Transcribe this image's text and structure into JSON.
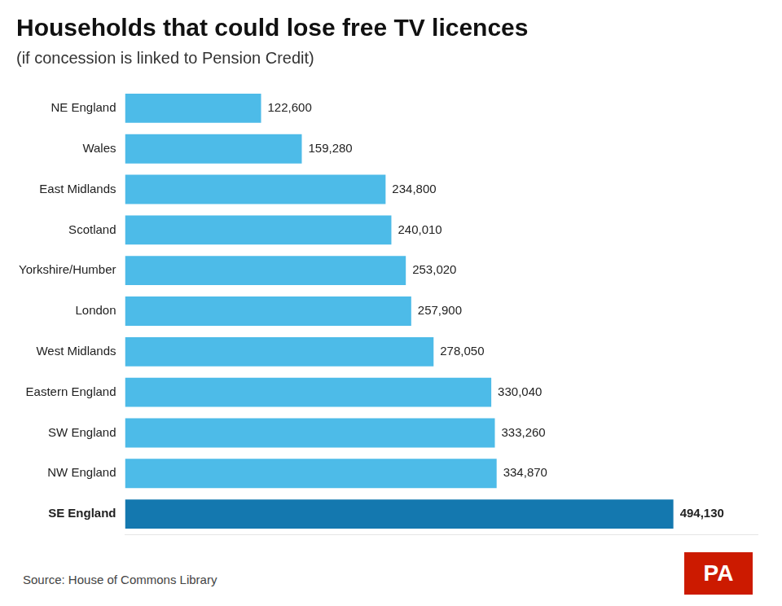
{
  "chart_data": {
    "type": "bar",
    "orientation": "horizontal",
    "title": "Households that could lose free TV licences",
    "subtitle": "(if concession is linked to Pension Credit)",
    "categories": [
      "NE England",
      "Wales",
      "East Midlands",
      "Scotland",
      "Yorkshire/Humber",
      "London",
      "West Midlands",
      "Eastern England",
      "SW England",
      "NW England",
      "SE England"
    ],
    "values": [
      122600,
      159280,
      234800,
      240010,
      253020,
      257900,
      278050,
      330040,
      333260,
      334870,
      494130
    ],
    "value_labels": [
      "122,600",
      "159,280",
      "234,800",
      "240,010",
      "253,020",
      "257,900",
      "278,050",
      "330,040",
      "333,260",
      "334,870",
      "494,130"
    ],
    "colors": [
      "#4DBBE8",
      "#4DBBE8",
      "#4DBBE8",
      "#4DBBE8",
      "#4DBBE8",
      "#4DBBE8",
      "#4DBBE8",
      "#4DBBE8",
      "#4DBBE8",
      "#4DBBE8",
      "#1478AF"
    ],
    "xlim": [
      0,
      570000
    ],
    "data_labels": true,
    "tick_labels": "y",
    "grid": false,
    "annotations": [
      {
        "text": "Source: House of Commons Library"
      },
      {
        "text": "PA",
        "color": "#CC1A00"
      }
    ]
  }
}
